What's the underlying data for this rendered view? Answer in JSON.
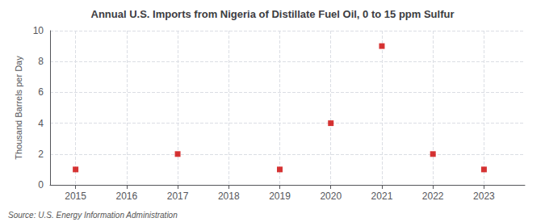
{
  "chart_data": {
    "type": "scatter",
    "title": "Annual U.S. Imports from Nigeria of Distillate Fuel Oil, 0 to 15 ppm Sulfur",
    "ylabel": "Thousand Barrels per Day",
    "annotations": [
      "Source: U.S. Energy Information Administration"
    ],
    "x": [
      2015,
      2017,
      2019,
      2020,
      2021,
      2022,
      2023
    ],
    "values": [
      1,
      2,
      1,
      4,
      9,
      2,
      1
    ],
    "color": "#cc0000",
    "marker": "square",
    "xlim": [
      2014.5,
      2023.8
    ],
    "xticks": [
      2015,
      2016,
      2017,
      2018,
      2019,
      2020,
      2021,
      2022,
      2023
    ],
    "ylim": [
      0,
      10
    ],
    "yticks": [
      0,
      2,
      4,
      6,
      8,
      10
    ],
    "grid": true
  }
}
